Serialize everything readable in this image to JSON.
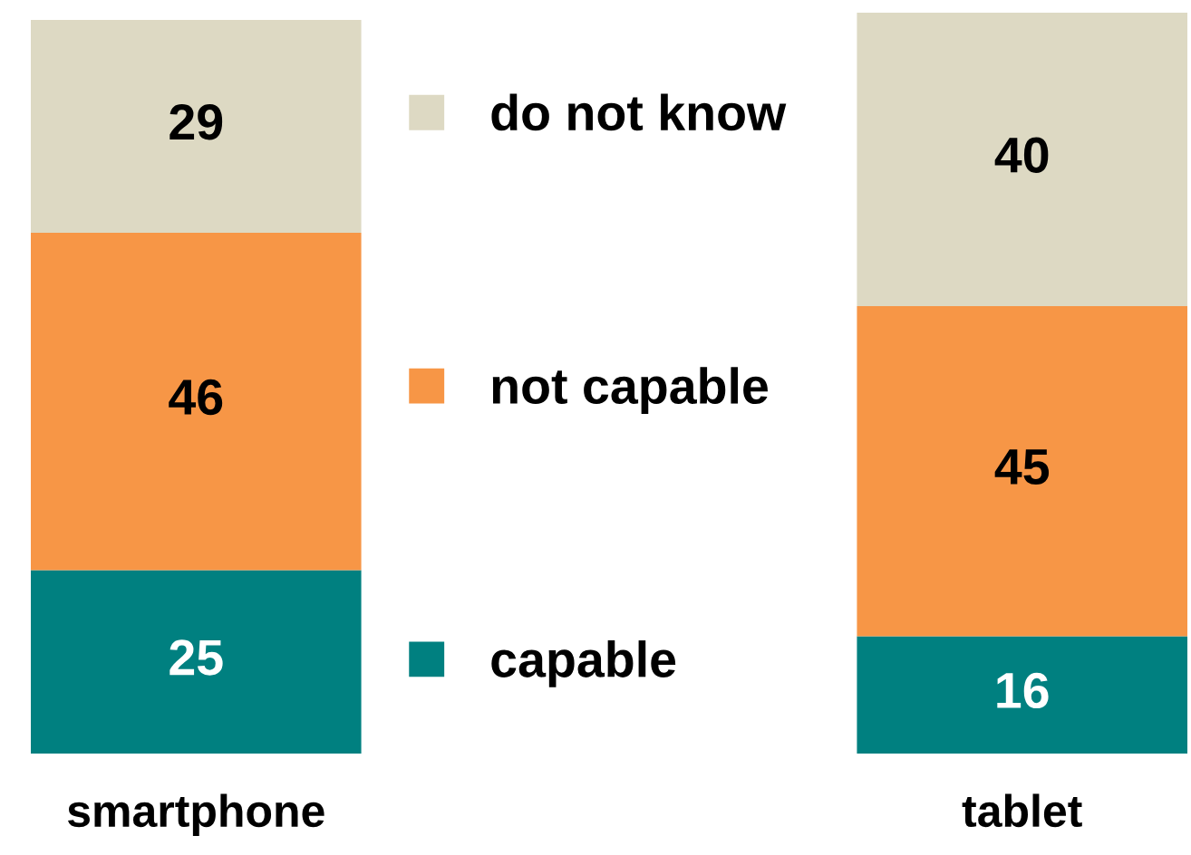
{
  "chart_data": {
    "type": "bar",
    "stacked": true,
    "categories": [
      "smartphone",
      "tablet"
    ],
    "series": [
      {
        "name": "capable",
        "color": "#008080",
        "values": [
          25,
          16
        ]
      },
      {
        "name": "not capable",
        "color": "#f79646",
        "values": [
          46,
          45
        ]
      },
      {
        "name": "do not know",
        "color": "#ddd9c3",
        "values": [
          29,
          40
        ]
      }
    ],
    "data_labels": true,
    "legend": "center",
    "tick_labels": "x",
    "grid": false
  }
}
